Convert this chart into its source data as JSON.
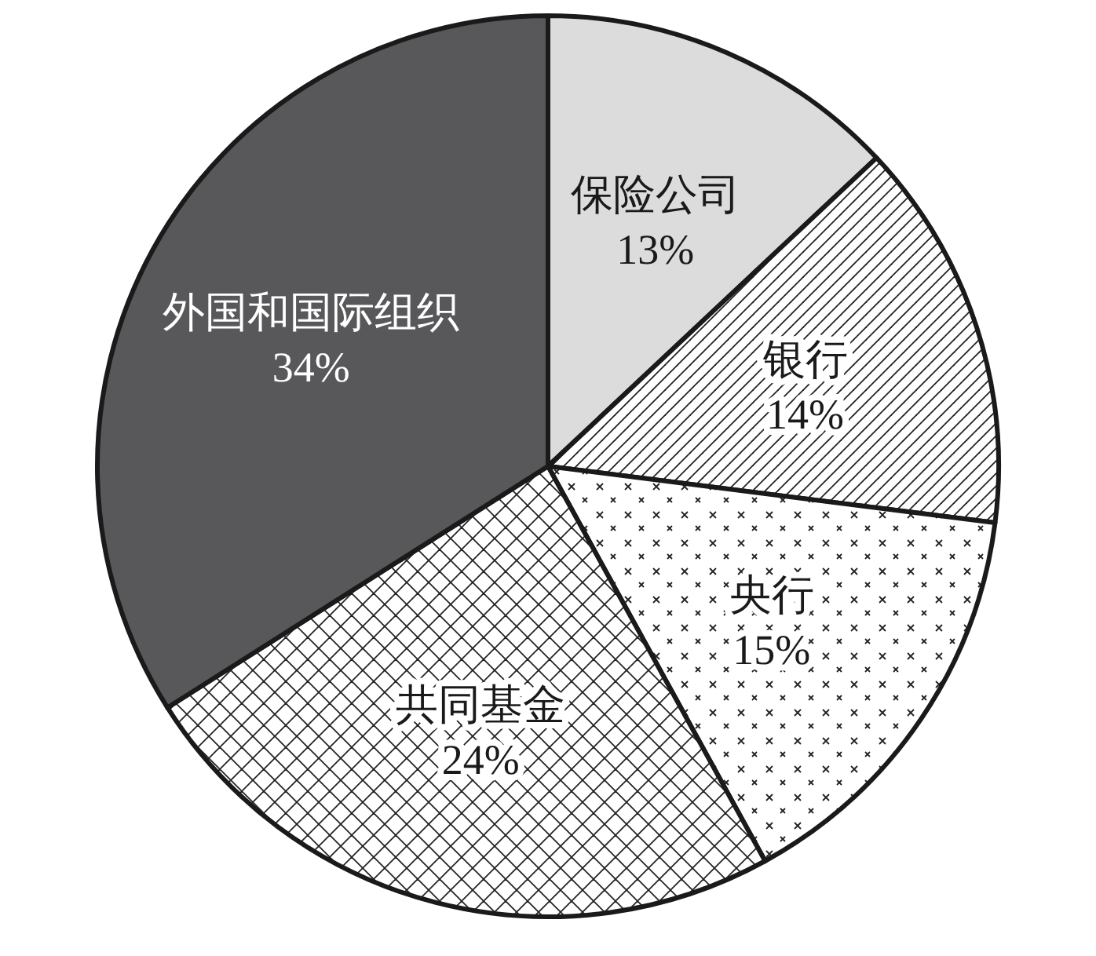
{
  "chart_data": {
    "type": "pie",
    "categories": [
      "保险公司",
      "银行",
      "央行",
      "共同基金",
      "外国和国际组织"
    ],
    "values": [
      13,
      14,
      15,
      24,
      34
    ],
    "colors": [
      "#dcdcdc",
      "#ffffff",
      "#ffffff",
      "#ffffff",
      "#58585a"
    ],
    "value_labels": [
      "13%",
      "14%",
      "15%",
      "24%",
      "34%"
    ]
  }
}
